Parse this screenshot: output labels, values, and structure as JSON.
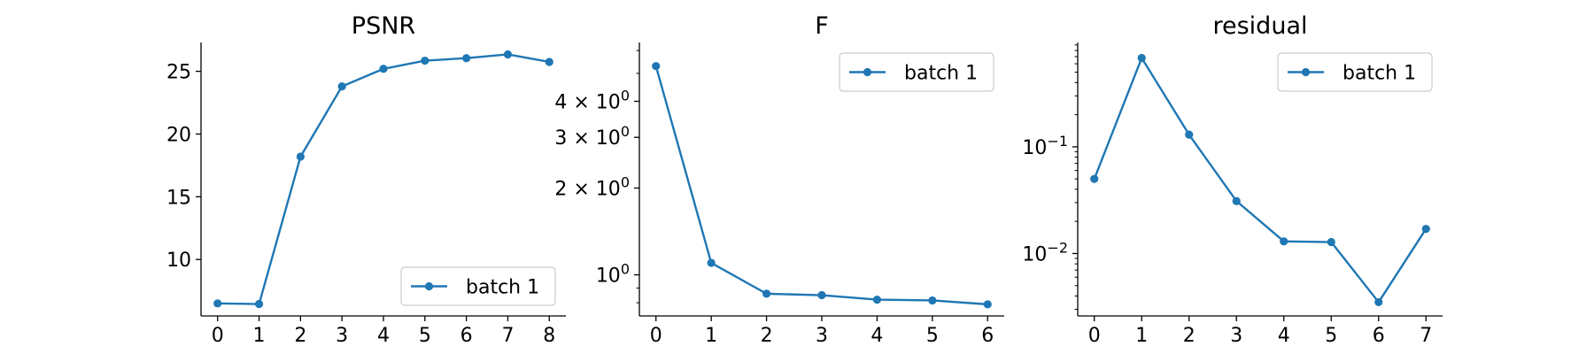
{
  "colors": {
    "series": "#1f77b4",
    "axis": "#000000",
    "legend_border": "#cccccc",
    "background": "#ffffff"
  },
  "chart_data": [
    {
      "type": "line",
      "title": "PSNR",
      "xlabel": "",
      "ylabel": "",
      "yscale": "linear",
      "x": [
        0,
        1,
        2,
        3,
        4,
        5,
        6,
        7,
        8
      ],
      "xticks": [
        "0",
        "1",
        "2",
        "3",
        "4",
        "5",
        "6",
        "7",
        "8"
      ],
      "xlim": [
        -0.4,
        8.4
      ],
      "ylim": [
        5.5,
        27.3
      ],
      "yticks": [
        {
          "value": 10,
          "label": "10"
        },
        {
          "value": 15,
          "label": "15"
        },
        {
          "value": 20,
          "label": "20"
        },
        {
          "value": 25,
          "label": "25"
        }
      ],
      "series": [
        {
          "name": "batch 1",
          "values": [
            6.5,
            6.45,
            18.2,
            23.8,
            25.2,
            25.85,
            26.05,
            26.35,
            25.75
          ]
        }
      ],
      "legend": "lower-right",
      "grid": false
    },
    {
      "type": "line",
      "title": "F",
      "xlabel": "",
      "ylabel": "",
      "yscale": "log",
      "x": [
        0,
        1,
        2,
        3,
        4,
        5,
        6
      ],
      "xticks": [
        "0",
        "1",
        "2",
        "3",
        "4",
        "5",
        "6"
      ],
      "xlim": [
        -0.3,
        6.3
      ],
      "ylim": [
        0.72,
        6.4
      ],
      "yticks": [
        {
          "value": 1,
          "label": "10^0"
        },
        {
          "value": 2,
          "label": "2 × 10^0"
        },
        {
          "value": 3,
          "label": "3 × 10^0"
        },
        {
          "value": 4,
          "label": "4 × 10^0"
        }
      ],
      "series": [
        {
          "name": "batch 1",
          "values": [
            5.3,
            1.1,
            0.86,
            0.85,
            0.82,
            0.815,
            0.79
          ]
        }
      ],
      "legend": "upper-right",
      "grid": false
    },
    {
      "type": "line",
      "title": "residual",
      "xlabel": "",
      "ylabel": "",
      "yscale": "log",
      "x": [
        0,
        1,
        2,
        3,
        4,
        5,
        6,
        7
      ],
      "xticks": [
        "0",
        "1",
        "2",
        "3",
        "4",
        "5",
        "6",
        "7"
      ],
      "xlim": [
        -0.35,
        7.35
      ],
      "ylim": [
        0.0026,
        0.95
      ],
      "yticks": [
        {
          "value": 0.01,
          "label": "10^−2"
        },
        {
          "value": 0.1,
          "label": "10^−1"
        }
      ],
      "series": [
        {
          "name": "batch 1",
          "values": [
            0.05,
            0.68,
            0.13,
            0.031,
            0.013,
            0.0128,
            0.0035,
            0.017
          ]
        }
      ],
      "legend": "upper-right",
      "grid": false
    }
  ]
}
